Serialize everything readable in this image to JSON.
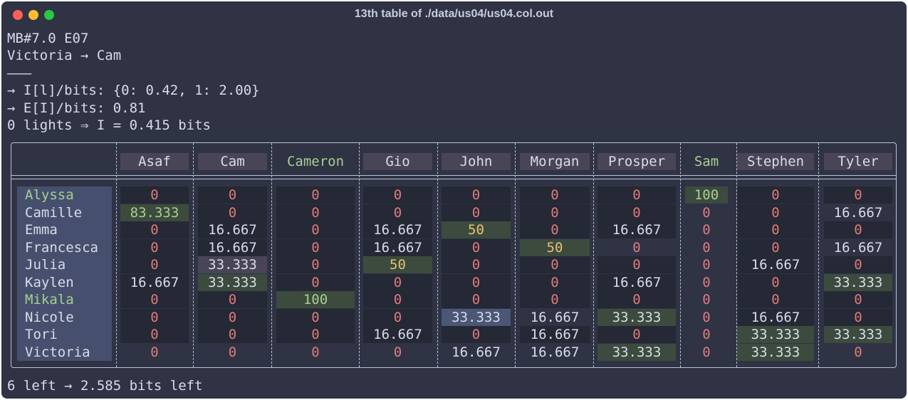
{
  "window": {
    "title": "13th table of ./data/us04/us04.col.out"
  },
  "header_lines": [
    "MB#7.0 E07",
    "Victoria → Cam",
    "———",
    "→ I[l]/bits: {0: 0.42, 1: 2.00}",
    "→ E[I]/bits: 0.81",
    "0 lights ⇒ I = 0.415 bits"
  ],
  "footer": "6 left → 2.585 bits left",
  "colors": {
    "background": "#2f3344",
    "zero": "#e07a7a",
    "green_highlight": "#a8cf8f",
    "yellow": "#e8c170",
    "match_cell": "#3c4b3e",
    "pink_cell": "#4a4556",
    "blue_cell": "#4c5675"
  },
  "table": {
    "columns": [
      "Asaf",
      "Cam",
      "Cameron",
      "Gio",
      "John",
      "Morgan",
      "Prosper",
      "Sam",
      "Stephen",
      "Tyler"
    ],
    "highlighted_columns": [
      "Cameron",
      "Sam"
    ],
    "rows": [
      {
        "name": "Alyssa",
        "highlight": true,
        "values": [
          "0",
          "0",
          "0",
          "0",
          "0",
          "0",
          "0",
          "100",
          "0",
          "0"
        ]
      },
      {
        "name": "Camille",
        "highlight": false,
        "values": [
          "83.333",
          "0",
          "0",
          "0",
          "0",
          "0",
          "0",
          "0",
          "0",
          "16.667"
        ]
      },
      {
        "name": "Emma",
        "highlight": false,
        "values": [
          "0",
          "16.667",
          "0",
          "16.667",
          "50",
          "0",
          "16.667",
          "0",
          "0",
          "0"
        ]
      },
      {
        "name": "Francesca",
        "highlight": false,
        "values": [
          "0",
          "16.667",
          "0",
          "16.667",
          "0",
          "50",
          "0",
          "0",
          "0",
          "16.667"
        ]
      },
      {
        "name": "Julia",
        "highlight": false,
        "values": [
          "0",
          "33.333",
          "0",
          "50",
          "0",
          "0",
          "0",
          "0",
          "16.667",
          "0"
        ]
      },
      {
        "name": "Kaylen",
        "highlight": false,
        "values": [
          "16.667",
          "33.333",
          "0",
          "0",
          "0",
          "0",
          "16.667",
          "0",
          "0",
          "33.333"
        ]
      },
      {
        "name": "Mikala",
        "highlight": true,
        "values": [
          "0",
          "0",
          "100",
          "0",
          "0",
          "0",
          "0",
          "0",
          "0",
          "0"
        ]
      },
      {
        "name": "Nicole",
        "highlight": false,
        "values": [
          "0",
          "0",
          "0",
          "0",
          "33.333",
          "16.667",
          "33.333",
          "0",
          "16.667",
          "0"
        ]
      },
      {
        "name": "Tori",
        "highlight": false,
        "values": [
          "0",
          "0",
          "0",
          "16.667",
          "0",
          "16.667",
          "0",
          "0",
          "33.333",
          "33.333"
        ]
      },
      {
        "name": "Victoria",
        "highlight": false,
        "values": [
          "0",
          "0",
          "0",
          "0",
          "16.667",
          "16.667",
          "33.333",
          "0",
          "33.333",
          "0"
        ]
      }
    ],
    "cell_styles": [
      [
        "d",
        "d",
        "d",
        "d",
        "d",
        "d",
        "d",
        "gb",
        "d",
        "d"
      ],
      [
        "gb",
        "d",
        "d",
        "d",
        "d",
        "d",
        "d",
        "n",
        "d",
        "n"
      ],
      [
        "d",
        "d",
        "d",
        "d",
        "y",
        "d",
        "d",
        "n",
        "d",
        "d"
      ],
      [
        "d",
        "d",
        "d",
        "d",
        "d",
        "y",
        "n",
        "n",
        "d",
        "n"
      ],
      [
        "d",
        "p",
        "d",
        "y",
        "d",
        "d",
        "d",
        "n",
        "d",
        "d"
      ],
      [
        "d",
        "g",
        "d",
        "d",
        "d",
        "d",
        "d",
        "n",
        "d",
        "g"
      ],
      [
        "d",
        "d",
        "gb",
        "d",
        "d",
        "d",
        "d",
        "n",
        "d",
        "d"
      ],
      [
        "d",
        "d",
        "d",
        "d",
        "b",
        "n",
        "g",
        "n",
        "d",
        "d"
      ],
      [
        "d",
        "d",
        "d",
        "d",
        "d",
        "d",
        "d",
        "n",
        "g",
        "g"
      ],
      [
        "n",
        "n",
        "n",
        "n",
        "n",
        "n",
        "g",
        "n",
        "g",
        "n"
      ]
    ]
  }
}
